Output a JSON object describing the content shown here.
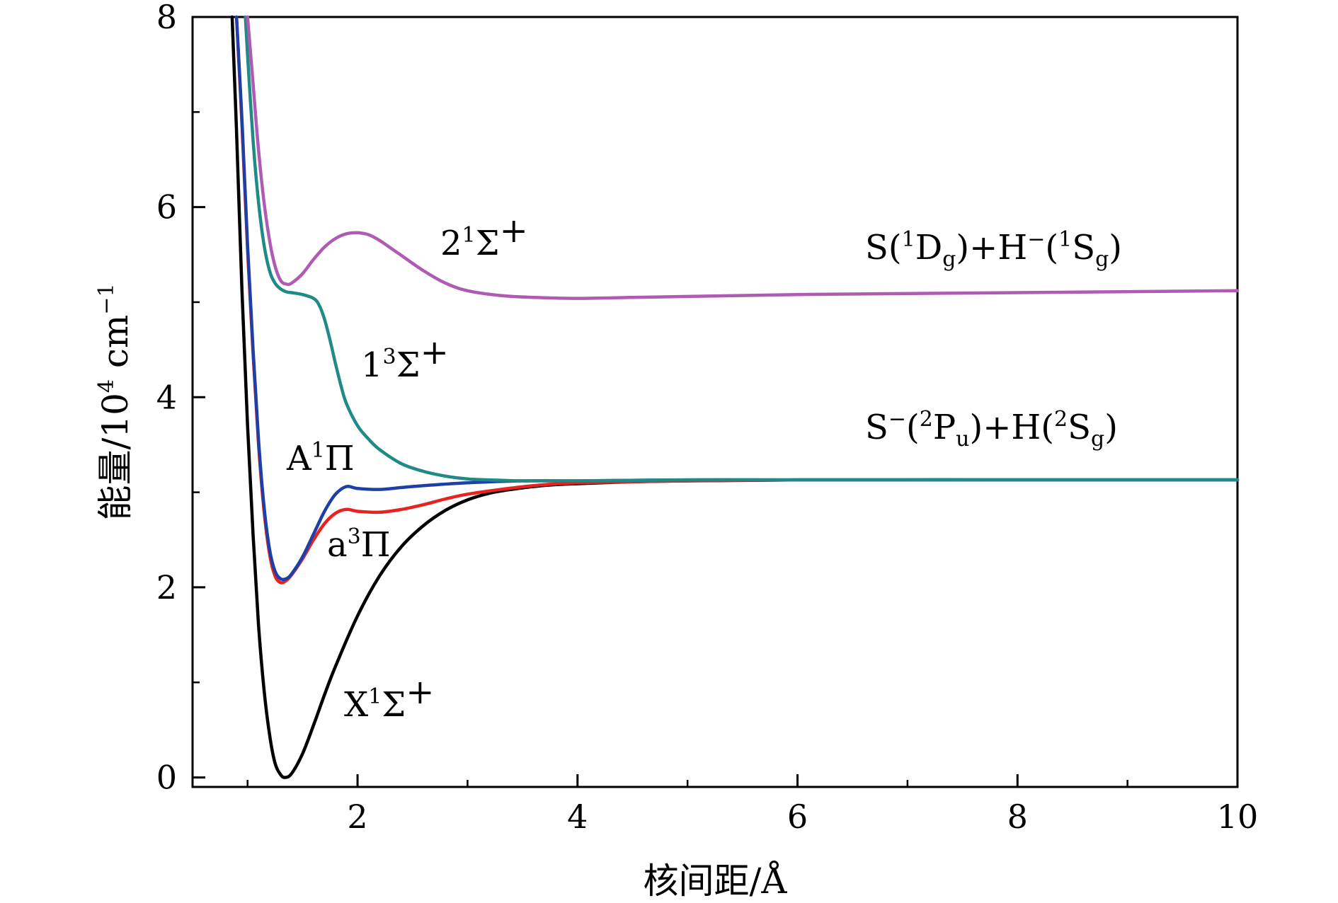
{
  "chart_data": {
    "type": "line",
    "xlabel": "核间距/Å",
    "ylabel": {
      "main": "能量/10",
      "exp": "4",
      "unit": " cm",
      "unit_exp": "−1"
    },
    "xlim": [
      0.5,
      10
    ],
    "ylim": [
      -0.1,
      8
    ],
    "xticks": [
      2,
      4,
      6,
      8,
      10
    ],
    "xtick_labels": [
      "2",
      "4",
      "6",
      "8",
      "10"
    ],
    "yticks": [
      0,
      2,
      4,
      6,
      8
    ],
    "ytick_labels": [
      "0",
      "2",
      "4",
      "6",
      "8"
    ],
    "grid": false,
    "series": [
      {
        "key": "X",
        "color": "#000000",
        "x": [
          0.86,
          0.9,
          0.95,
          1.0,
          1.05,
          1.1,
          1.15,
          1.2,
          1.25,
          1.3,
          1.34,
          1.4,
          1.5,
          1.6,
          1.7,
          1.8,
          2.0,
          2.2,
          2.4,
          2.6,
          2.8,
          3.0,
          3.2,
          3.4,
          3.6,
          3.8,
          4.0,
          4.5,
          5.0,
          6.0,
          8.0,
          10.0
        ],
        "y": [
          8.0,
          6.8,
          5.1,
          3.7,
          2.55,
          1.6,
          0.92,
          0.45,
          0.15,
          0.03,
          0.0,
          0.04,
          0.25,
          0.55,
          0.87,
          1.17,
          1.7,
          2.12,
          2.43,
          2.65,
          2.81,
          2.92,
          2.99,
          3.03,
          3.06,
          3.08,
          3.09,
          3.11,
          3.12,
          3.13,
          3.13,
          3.13
        ]
      },
      {
        "key": "a3Pi",
        "color": "#e8231f",
        "x": [
          0.9,
          0.95,
          1.0,
          1.05,
          1.1,
          1.15,
          1.2,
          1.25,
          1.3,
          1.35,
          1.4,
          1.5,
          1.6,
          1.7,
          1.8,
          1.9,
          2.0,
          2.2,
          2.4,
          2.6,
          2.8,
          3.0,
          3.3,
          3.6,
          4.0,
          5.0,
          6.0,
          8.0,
          10.0
        ],
        "y": [
          8.0,
          6.85,
          5.55,
          4.45,
          3.5,
          2.8,
          2.35,
          2.12,
          2.05,
          2.07,
          2.13,
          2.3,
          2.5,
          2.67,
          2.78,
          2.82,
          2.8,
          2.79,
          2.82,
          2.87,
          2.93,
          2.98,
          3.03,
          3.07,
          3.1,
          3.12,
          3.13,
          3.13,
          3.13
        ]
      },
      {
        "key": "A1Pi",
        "color": "#1f3fa8",
        "x": [
          0.9,
          0.95,
          1.0,
          1.05,
          1.1,
          1.15,
          1.2,
          1.25,
          1.3,
          1.35,
          1.4,
          1.5,
          1.6,
          1.7,
          1.8,
          1.9,
          2.0,
          2.2,
          2.4,
          2.6,
          3.0,
          3.5,
          4.0,
          5.0,
          6.0,
          8.0,
          10.0
        ],
        "y": [
          8.0,
          6.9,
          5.6,
          4.5,
          3.55,
          2.85,
          2.4,
          2.17,
          2.09,
          2.09,
          2.14,
          2.32,
          2.56,
          2.8,
          2.98,
          3.06,
          3.04,
          3.03,
          3.05,
          3.07,
          3.1,
          3.12,
          3.12,
          3.13,
          3.13,
          3.13,
          3.13
        ]
      },
      {
        "key": "1_3Sigma",
        "color": "#1f8a86",
        "x": [
          0.98,
          1.0,
          1.05,
          1.1,
          1.15,
          1.2,
          1.25,
          1.3,
          1.35,
          1.4,
          1.5,
          1.6,
          1.65,
          1.7,
          1.75,
          1.8,
          1.85,
          1.9,
          2.0,
          2.1,
          2.2,
          2.4,
          2.6,
          2.8,
          3.0,
          3.2,
          3.5,
          4.0,
          5.0,
          6.0,
          8.0,
          10.0
        ],
        "y": [
          8.0,
          7.6,
          6.7,
          6.05,
          5.6,
          5.33,
          5.2,
          5.14,
          5.11,
          5.1,
          5.08,
          5.04,
          4.97,
          4.82,
          4.6,
          4.35,
          4.12,
          3.93,
          3.7,
          3.56,
          3.45,
          3.3,
          3.22,
          3.17,
          3.14,
          3.13,
          3.12,
          3.12,
          3.13,
          3.13,
          3.13,
          3.13
        ]
      },
      {
        "key": "2_1Sigma",
        "color": "#b05bb3",
        "x": [
          1.0,
          1.05,
          1.1,
          1.15,
          1.2,
          1.25,
          1.3,
          1.35,
          1.4,
          1.5,
          1.6,
          1.7,
          1.8,
          1.9,
          2.0,
          2.1,
          2.2,
          2.3,
          2.4,
          2.6,
          2.8,
          3.0,
          3.3,
          3.6,
          4.0,
          4.5,
          5.0,
          6.0,
          8.0,
          10.0
        ],
        "y": [
          8.0,
          7.3,
          6.6,
          6.05,
          5.65,
          5.38,
          5.23,
          5.19,
          5.2,
          5.3,
          5.45,
          5.58,
          5.67,
          5.72,
          5.73,
          5.71,
          5.65,
          5.57,
          5.49,
          5.33,
          5.2,
          5.12,
          5.07,
          5.05,
          5.04,
          5.05,
          5.06,
          5.08,
          5.1,
          5.12
        ]
      }
    ],
    "annotations": {
      "l_2_1Sigma": {
        "pre": "2",
        "sup": "1",
        "post": "Σ",
        "sup2": "+"
      },
      "l_1_3Sigma": {
        "pre": "1",
        "sup": "3",
        "post": "Σ",
        "sup2": "+"
      },
      "l_A1Pi": {
        "pre": "A",
        "sup": "1",
        "post": "Π"
      },
      "l_a3Pi": {
        "pre": "a",
        "sup": "3",
        "post": "Π"
      },
      "l_X": {
        "pre": "X",
        "sup": "1",
        "post": "Σ",
        "sup2": "+"
      },
      "asym_upper": {
        "p1": "S(",
        "s1": "1",
        "p2": "D",
        "b1": "g",
        "p3": ")+H",
        "s2": "−",
        "p4": "(",
        "s3": "1",
        "p5": "S",
        "b2": "g",
        "p6": ")"
      },
      "asym_lower": {
        "p1": "S",
        "s1": "−",
        "p2": "(",
        "s2": "2",
        "p3": "P",
        "b1": "u",
        "p4": ")+H(",
        "s3": "2",
        "p5": "S",
        "b2": "g",
        "p6": ")"
      }
    }
  }
}
